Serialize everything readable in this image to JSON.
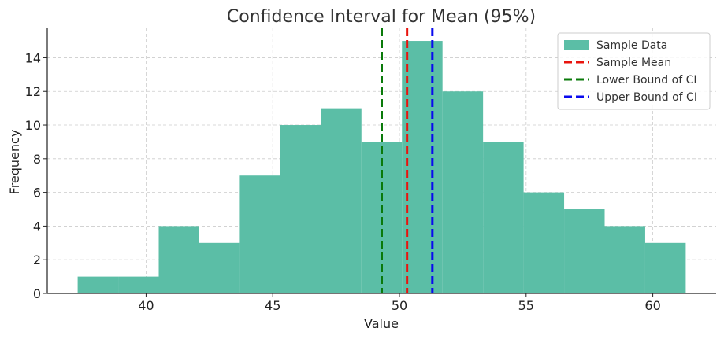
{
  "chart_data": {
    "type": "bar",
    "title": "Confidence Interval for Mean (95%)",
    "xlabel": "Value",
    "ylabel": "Frequency",
    "xlim": [
      36.1,
      62.5
    ],
    "ylim": [
      0,
      15.75
    ],
    "xticks": [
      40,
      45,
      50,
      55,
      60
    ],
    "yticks": [
      0,
      2,
      4,
      6,
      8,
      10,
      12,
      14
    ],
    "grid": true,
    "legend_position": "top-right",
    "histogram": {
      "name": "Sample Data",
      "color": "#5bbea6",
      "bins": [
        {
          "x0": 37.3,
          "x1": 38.9,
          "count": 1
        },
        {
          "x0": 38.9,
          "x1": 40.5,
          "count": 1
        },
        {
          "x0": 40.5,
          "x1": 42.1,
          "count": 4
        },
        {
          "x0": 42.1,
          "x1": 43.7,
          "count": 3
        },
        {
          "x0": 43.7,
          "x1": 45.3,
          "count": 7
        },
        {
          "x0": 45.3,
          "x1": 46.9,
          "count": 10
        },
        {
          "x0": 46.9,
          "x1": 48.5,
          "count": 11
        },
        {
          "x0": 48.5,
          "x1": 50.1,
          "count": 9
        },
        {
          "x0": 50.1,
          "x1": 51.7,
          "count": 15
        },
        {
          "x0": 51.7,
          "x1": 53.3,
          "count": 12
        },
        {
          "x0": 53.3,
          "x1": 54.9,
          "count": 9
        },
        {
          "x0": 54.9,
          "x1": 56.5,
          "count": 6
        },
        {
          "x0": 56.5,
          "x1": 58.1,
          "count": 5
        },
        {
          "x0": 58.1,
          "x1": 59.7,
          "count": 4
        },
        {
          "x0": 59.7,
          "x1": 61.3,
          "count": 3
        }
      ]
    },
    "vlines": [
      {
        "name": "Sample Mean",
        "x": 50.3,
        "color": "#e8140e"
      },
      {
        "name": "Lower Bound of CI",
        "x": 49.3,
        "color": "#0a7a0a"
      },
      {
        "name": "Upper Bound of CI",
        "x": 51.3,
        "color": "#0a0aee"
      }
    ]
  }
}
